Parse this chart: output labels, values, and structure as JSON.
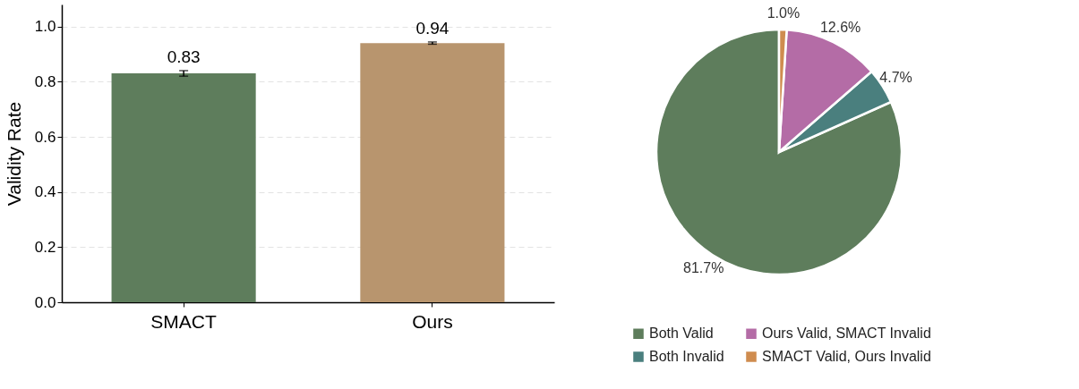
{
  "chart_data": [
    {
      "type": "bar",
      "categories": [
        "SMACT",
        "Ours"
      ],
      "values": [
        0.83,
        0.94
      ],
      "colors": [
        "#5e7d5c",
        "#b8956e"
      ],
      "errors": [
        0.01,
        0.004
      ],
      "ylabel": "Validity Rate",
      "ylim": [
        0,
        1.08
      ],
      "yticks": [
        {
          "value": 0,
          "label": "0.0"
        },
        0.2,
        0.4,
        0.6,
        0.8,
        {
          "value": 1,
          "label": "1.0"
        }
      ],
      "grid": "y",
      "data_labels": true
    },
    {
      "type": "pie",
      "categories": [
        "Both Valid",
        "Both Invalid",
        "Ours Valid, SMACT Invalid",
        "SMACT Valid, Ours Invalid"
      ],
      "values": [
        81.7,
        4.7,
        12.6,
        1.0
      ],
      "colors": [
        "#5e7d5c",
        "#4a7f7e",
        "#b46ca6",
        "#cf8c4f"
      ],
      "value_labels": [
        "81.7%",
        "4.7%",
        "12.6%",
        "1.0%"
      ],
      "legend": "bottom"
    }
  ]
}
